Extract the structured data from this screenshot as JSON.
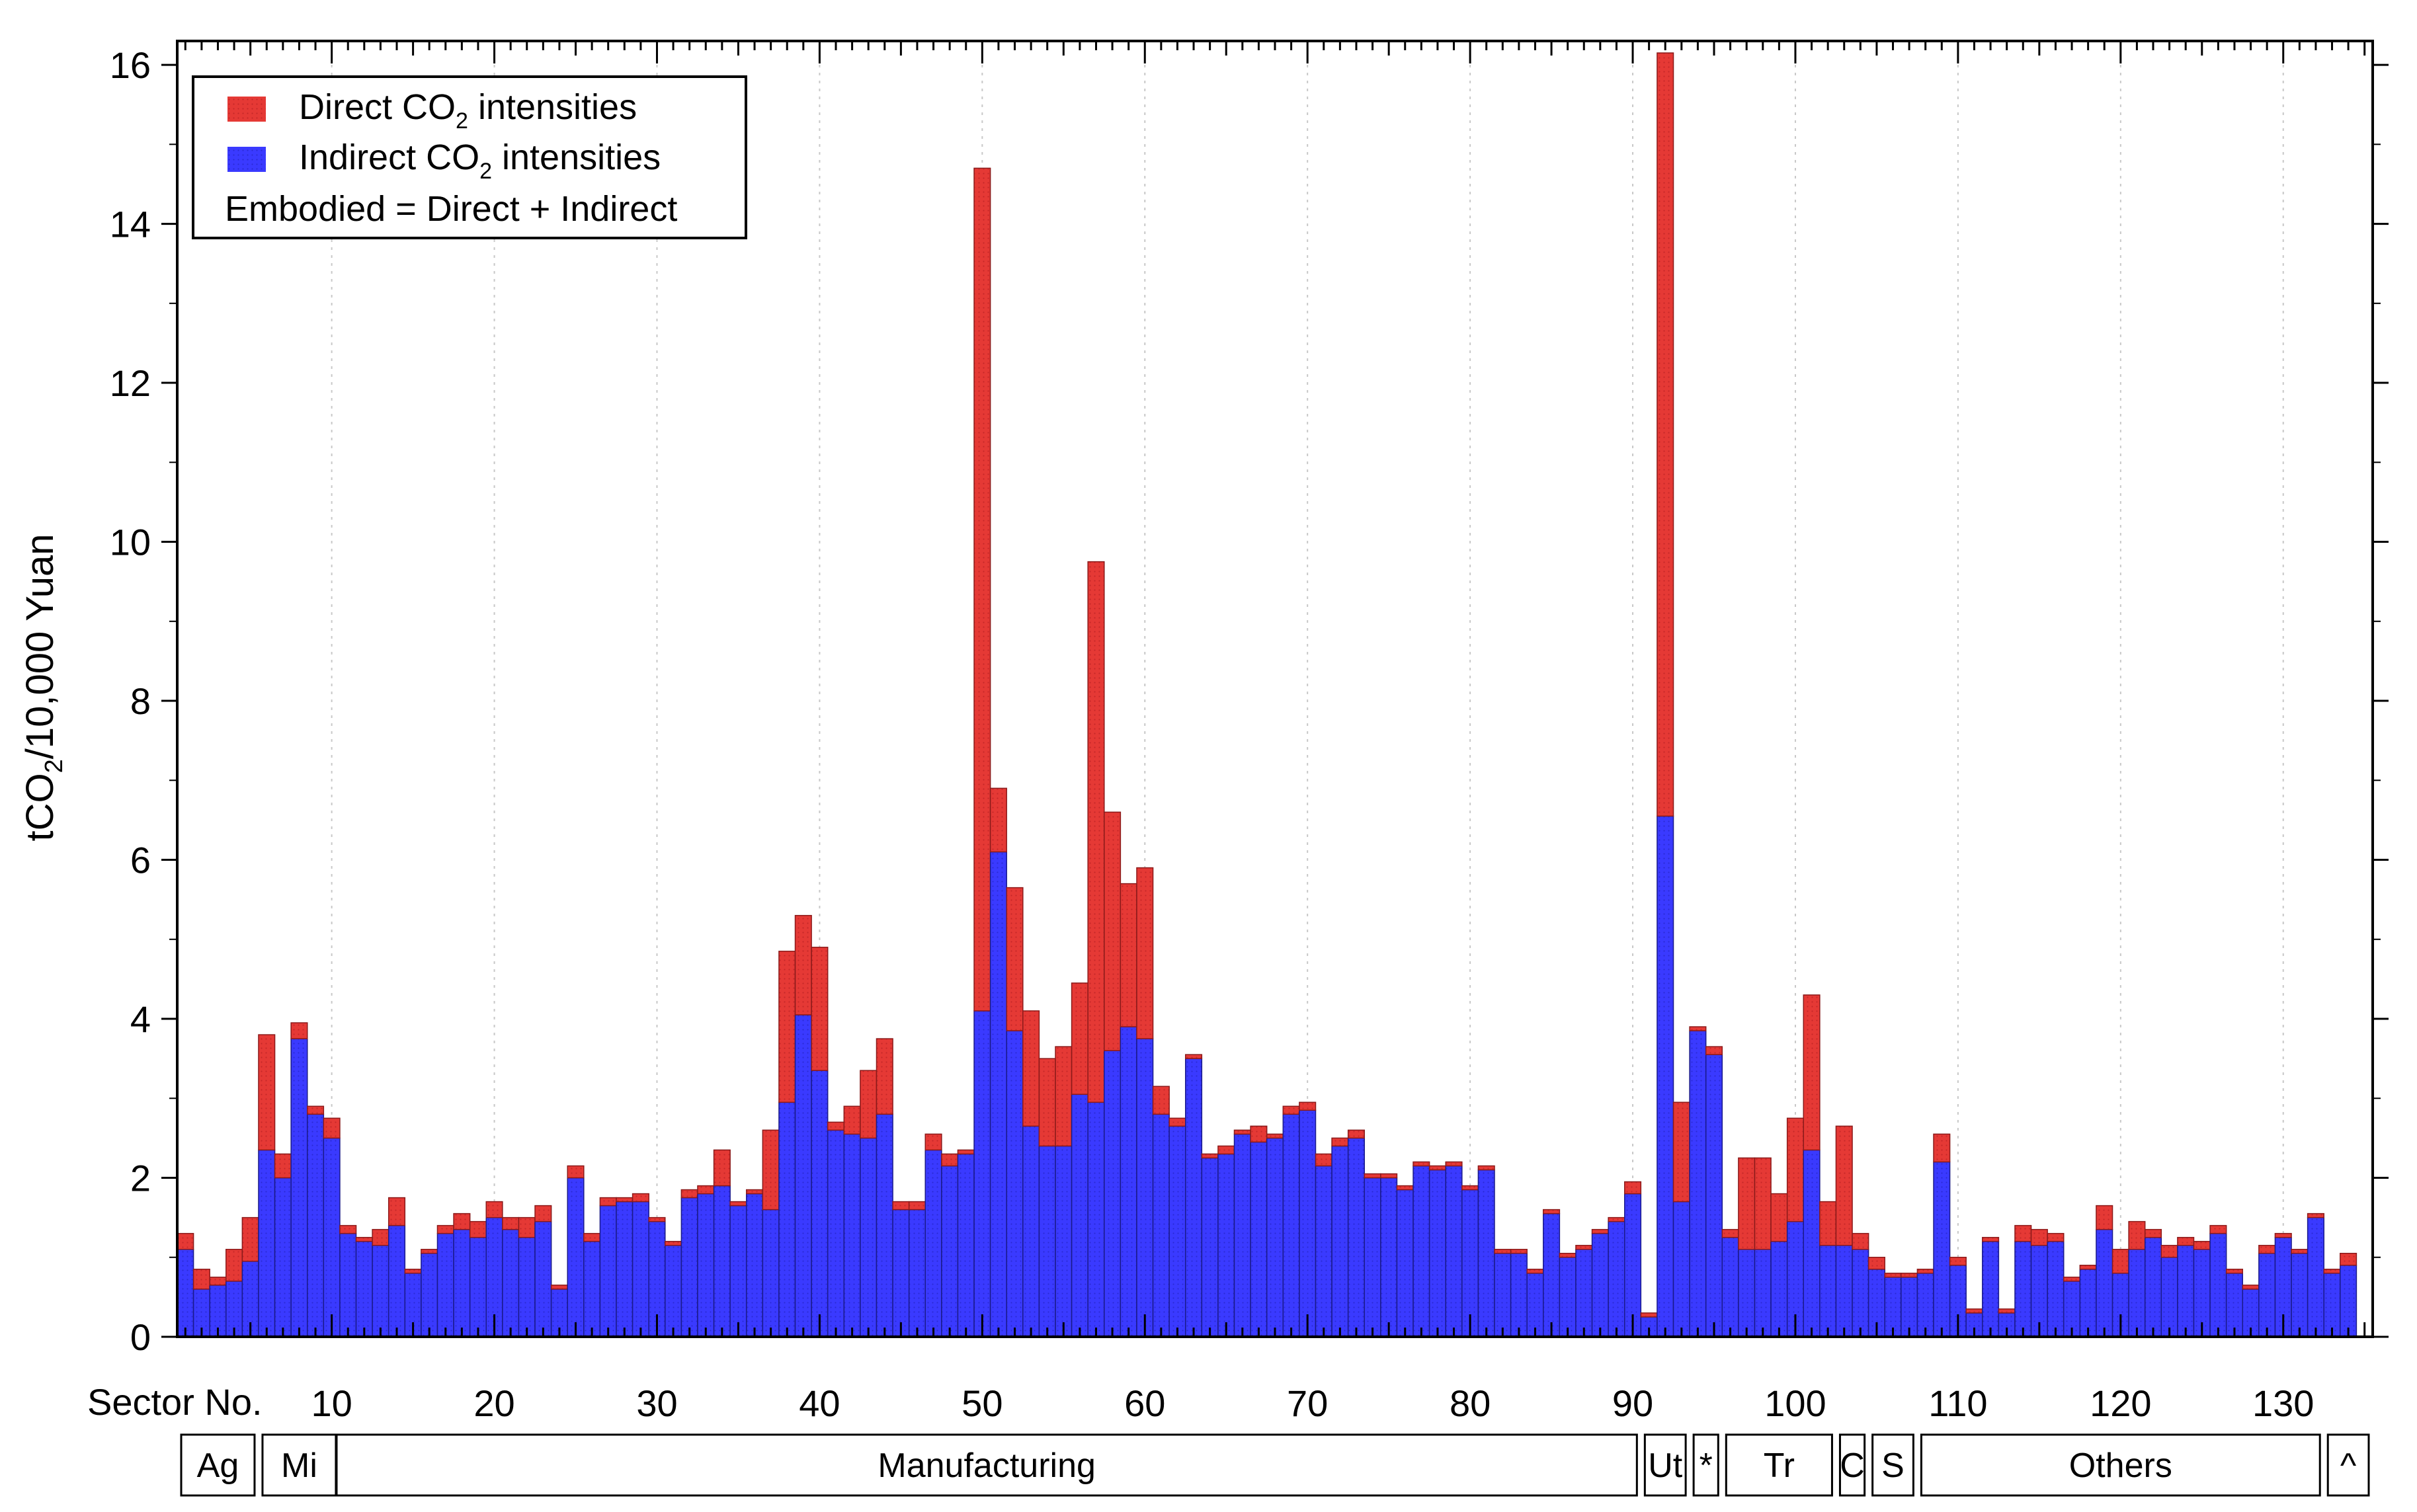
{
  "chart_data": {
    "type": "bar",
    "stacked": true,
    "ylabel": "tCO2/10,000 Yuan",
    "xlabel": "Sector No.",
    "xlim": [
      0.5,
      135.5
    ],
    "ylim": [
      0,
      16.3
    ],
    "x_ticks": [
      10,
      20,
      30,
      40,
      50,
      60,
      70,
      80,
      90,
      100,
      110,
      120,
      130
    ],
    "y_ticks": [
      0,
      2,
      4,
      6,
      8,
      10,
      12,
      14,
      16
    ],
    "grid": "vertical dotted every 10 sectors",
    "legend": {
      "position": "top-left",
      "entries": [
        {
          "label_main": "Direct CO",
          "label_sub": "2",
          "label_tail": " intensities",
          "color": "#e53935"
        },
        {
          "label_main": "Indirect CO",
          "label_sub": "2",
          "label_tail": " intensities",
          "color": "#3333ff"
        }
      ],
      "note": "Embodied = Direct + Indirect"
    },
    "series": [
      {
        "name": "Indirect CO2 intensities",
        "color": "#3333ff",
        "values": [
          1.1,
          0.6,
          0.65,
          0.7,
          0.95,
          2.35,
          2.0,
          3.75,
          2.8,
          2.5,
          1.3,
          1.2,
          1.15,
          1.4,
          0.8,
          1.05,
          1.3,
          1.35,
          1.25,
          1.5,
          1.35,
          1.25,
          1.45,
          0.6,
          2.0,
          1.2,
          1.65,
          1.7,
          1.7,
          1.45,
          1.15,
          1.75,
          1.8,
          1.9,
          1.65,
          1.8,
          1.6,
          2.95,
          4.05,
          3.35,
          2.6,
          2.55,
          2.5,
          2.8,
          1.6,
          1.6,
          2.35,
          2.15,
          2.3,
          4.1,
          6.1,
          3.85,
          2.65,
          2.4,
          2.4,
          3.05,
          2.95,
          3.6,
          3.9,
          3.75,
          2.8,
          2.65,
          3.5,
          2.25,
          2.3,
          2.55,
          2.45,
          2.5,
          2.8,
          2.85,
          2.15,
          2.4,
          2.5,
          2.0,
          2.0,
          1.85,
          2.15,
          2.1,
          2.15,
          1.85,
          2.1,
          1.05,
          1.05,
          0.8,
          1.55,
          1.0,
          1.1,
          1.3,
          1.45,
          1.8,
          0.25,
          6.55,
          1.7,
          3.85,
          3.55,
          1.25,
          1.1,
          1.1,
          1.2,
          1.45,
          2.35,
          1.15,
          1.15,
          1.1,
          0.85,
          0.75,
          0.75,
          0.8,
          2.2,
          0.9,
          0.3,
          1.2,
          0.3,
          1.2,
          1.15,
          1.2,
          0.7,
          0.85,
          1.35,
          0.8,
          1.1,
          1.25,
          1.0,
          1.15,
          1.1,
          1.3,
          0.8,
          0.6,
          1.05,
          1.25,
          1.05,
          1.5,
          0.8,
          0.9
        ]
      },
      {
        "name": "Direct CO2 intensities",
        "color": "#e53935",
        "values": [
          0.2,
          0.25,
          0.1,
          0.4,
          0.55,
          1.45,
          0.3,
          0.2,
          0.1,
          0.25,
          0.1,
          0.05,
          0.2,
          0.35,
          0.05,
          0.05,
          0.1,
          0.2,
          0.2,
          0.2,
          0.15,
          0.25,
          0.2,
          0.05,
          0.15,
          0.1,
          0.1,
          0.05,
          0.1,
          0.05,
          0.05,
          0.1,
          0.1,
          0.45,
          0.05,
          0.05,
          1.0,
          1.9,
          1.25,
          1.55,
          0.1,
          0.35,
          0.85,
          0.95,
          0.1,
          0.1,
          0.2,
          0.15,
          0.05,
          10.6,
          0.8,
          1.8,
          1.45,
          1.1,
          1.25,
          1.4,
          6.8,
          3.0,
          1.8,
          2.15,
          0.35,
          0.1,
          0.05,
          0.05,
          0.1,
          0.05,
          0.2,
          0.05,
          0.1,
          0.1,
          0.15,
          0.1,
          0.1,
          0.05,
          0.05,
          0.05,
          0.05,
          0.05,
          0.05,
          0.05,
          0.05,
          0.05,
          0.05,
          0.05,
          0.05,
          0.05,
          0.05,
          0.05,
          0.05,
          0.15,
          0.05,
          9.6,
          1.25,
          0.05,
          0.1,
          0.1,
          1.15,
          1.15,
          0.6,
          1.3,
          1.95,
          0.55,
          1.5,
          0.2,
          0.15,
          0.05,
          0.05,
          0.05,
          0.35,
          0.1,
          0.05,
          0.05,
          0.05,
          0.2,
          0.2,
          0.1,
          0.05,
          0.05,
          0.3,
          0.3,
          0.35,
          0.1,
          0.15,
          0.1,
          0.1,
          0.1,
          0.05,
          0.05,
          0.1,
          0.05,
          0.05,
          0.05,
          0.05,
          0.15
        ]
      }
    ],
    "sector_groups": [
      {
        "label": "Ag",
        "from": 1,
        "to": 5
      },
      {
        "label": "Mi",
        "from": 6,
        "to": 10
      },
      {
        "label": "Manufacturing",
        "from": 10,
        "to": 90
      },
      {
        "label": "Ut",
        "from": 91,
        "to": 93
      },
      {
        "label": "*",
        "from": 94,
        "to": 95
      },
      {
        "label": "Tr",
        "from": 96,
        "to": 102
      },
      {
        "label": "C",
        "from": 103,
        "to": 104
      },
      {
        "label": "S",
        "from": 105,
        "to": 107
      },
      {
        "label": "Others",
        "from": 108,
        "to": 132
      },
      {
        "label": "^",
        "from": 133,
        "to": 135
      }
    ]
  }
}
